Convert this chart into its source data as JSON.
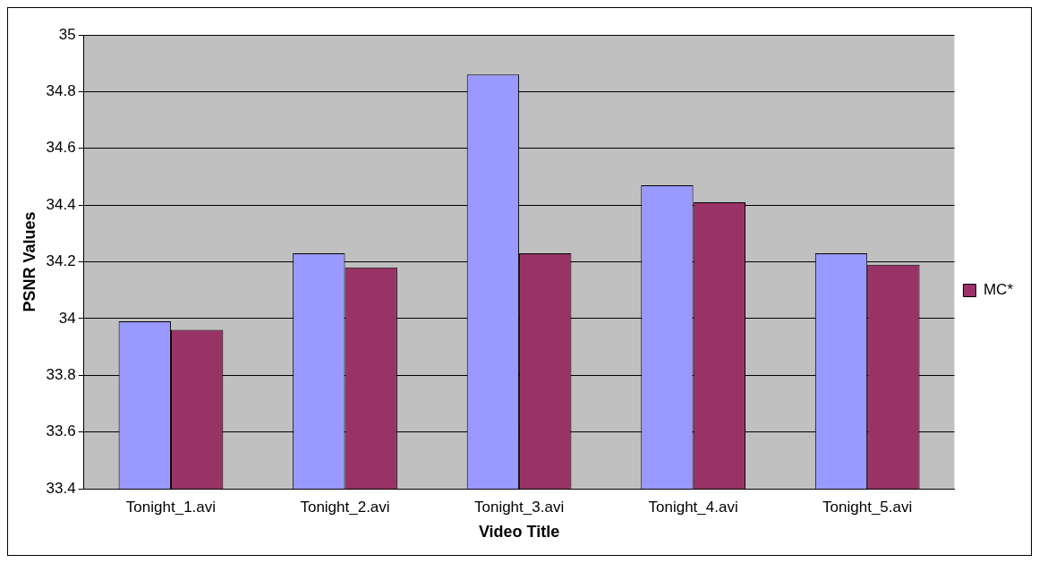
{
  "chart_data": {
    "type": "bar",
    "xlabel": "Video Title",
    "ylabel": "PSNR Values",
    "categories": [
      "Tonight_1.avi",
      "Tonight_2.avi",
      "Tonight_3.avi",
      "Tonight_4.avi",
      "Tonight_5.avi"
    ],
    "series": [
      {
        "color": "#9999ff",
        "values": [
          33.99,
          34.23,
          34.86,
          34.47,
          34.23
        ]
      },
      {
        "name": "MC*",
        "color": "#993366",
        "values": [
          33.96,
          34.18,
          34.23,
          34.41,
          34.19
        ]
      }
    ],
    "ylim": [
      33.4,
      35
    ],
    "yticks": [
      33.4,
      33.6,
      33.8,
      34,
      34.2,
      34.4,
      34.6,
      34.8,
      35
    ],
    "grid": "y",
    "legend": "right"
  }
}
